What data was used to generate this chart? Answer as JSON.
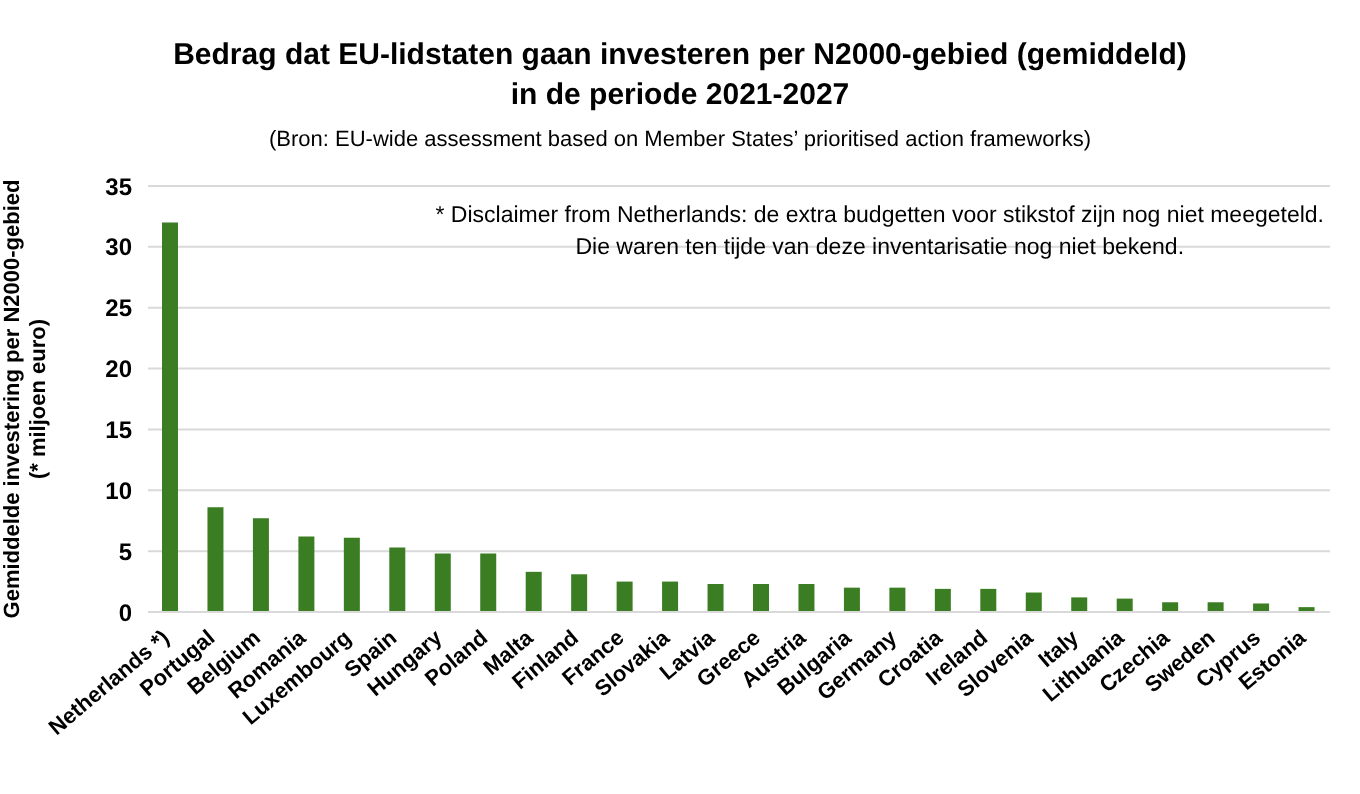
{
  "chart_data": {
    "type": "bar",
    "title": "Bedrag dat EU-lidstaten gaan investeren per N2000-gebied (gemiddeld)\nin de periode 2021-2027",
    "subtitle": "(Bron: EU-wide assessment based on Member States’ prioritised action frameworks)",
    "ylabel": "Gemiddelde investering per N2000-gebied\n(* miljoen euro)",
    "annotations": [
      "* Disclaimer from Netherlands: de extra budgetten voor stikstof zijn nog niet meegeteld.\nDie waren ten tijde van deze inventarisatie nog niet bekend."
    ],
    "categories": [
      "Netherlands *)",
      "Portugal",
      "Belgium",
      "Romania",
      "Luxembourg",
      "Spain",
      "Hungary",
      "Poland",
      "Malta",
      "Finland",
      "France",
      "Slovakia",
      "Latvia",
      "Greece",
      "Austria",
      "Bulgaria",
      "Germany",
      "Croatia",
      "Ireland",
      "Slovenia",
      "Italy",
      "Lithuania",
      "Czechia",
      "Sweden",
      "Cyprus",
      "Estonia"
    ],
    "values": [
      32,
      8.6,
      7.7,
      6.2,
      6.1,
      5.3,
      4.8,
      4.8,
      3.3,
      3.1,
      2.5,
      2.5,
      2.3,
      2.3,
      2.3,
      2.0,
      2.0,
      1.9,
      1.9,
      1.6,
      1.2,
      1.1,
      0.8,
      0.8,
      0.7,
      0.4
    ],
    "color": "#3a7d22",
    "ylim": [
      0,
      35
    ],
    "yticks": [
      0,
      5,
      10,
      15,
      20,
      25,
      30,
      35
    ],
    "grid": "y"
  }
}
